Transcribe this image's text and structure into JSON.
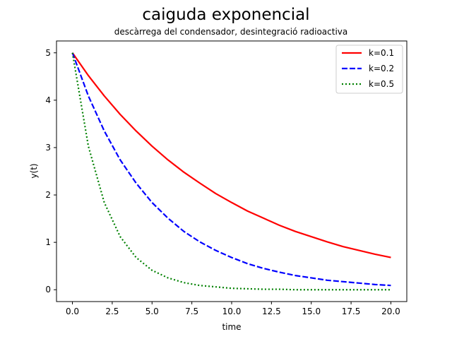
{
  "chart_data": {
    "type": "line",
    "title": "caiguda exponencial",
    "subtitle": "descàrrega del condensador, desintegració radioactiva",
    "xlabel": "time",
    "ylabel": "y(t)",
    "xlim": [
      -1.0,
      21.0
    ],
    "ylim": [
      -0.25,
      5.25
    ],
    "xticks": [
      0,
      2.5,
      5,
      7.5,
      10,
      12.5,
      15,
      17.5,
      20
    ],
    "xtick_labels": [
      "0.0",
      "2.5",
      "5.0",
      "7.5",
      "10.0",
      "12.5",
      "15.0",
      "17.5",
      "20.0"
    ],
    "yticks": [
      0,
      1,
      2,
      3,
      4,
      5
    ],
    "ytick_labels": [
      "0",
      "1",
      "2",
      "3",
      "4",
      "5"
    ],
    "grid": false,
    "legend_position": "top-right",
    "x": [
      0,
      1,
      2,
      3,
      4,
      5,
      6,
      7,
      8,
      9,
      10,
      11,
      12,
      13,
      14,
      15,
      16,
      17,
      18,
      19,
      20
    ],
    "series": [
      {
        "name": "k=0.1",
        "color": "#ff0000",
        "style": "solid",
        "values": [
          5.0,
          4.52,
          4.09,
          3.7,
          3.35,
          3.03,
          2.74,
          2.48,
          2.25,
          2.03,
          1.84,
          1.66,
          1.51,
          1.36,
          1.23,
          1.12,
          1.01,
          0.91,
          0.83,
          0.75,
          0.68
        ]
      },
      {
        "name": "k=0.2",
        "color": "#0000ff",
        "style": "dashed",
        "values": [
          5.0,
          4.09,
          3.35,
          2.74,
          2.25,
          1.84,
          1.51,
          1.23,
          1.01,
          0.83,
          0.68,
          0.55,
          0.45,
          0.37,
          0.3,
          0.25,
          0.2,
          0.17,
          0.14,
          0.11,
          0.09
        ]
      },
      {
        "name": "k=0.5",
        "color": "#008000",
        "style": "dotted",
        "values": [
          5.0,
          3.03,
          1.84,
          1.12,
          0.68,
          0.41,
          0.25,
          0.15,
          0.09,
          0.06,
          0.03,
          0.02,
          0.01,
          0.01,
          0.0,
          0.0,
          0.0,
          0.0,
          0.0,
          0.0,
          0.0
        ]
      }
    ]
  }
}
